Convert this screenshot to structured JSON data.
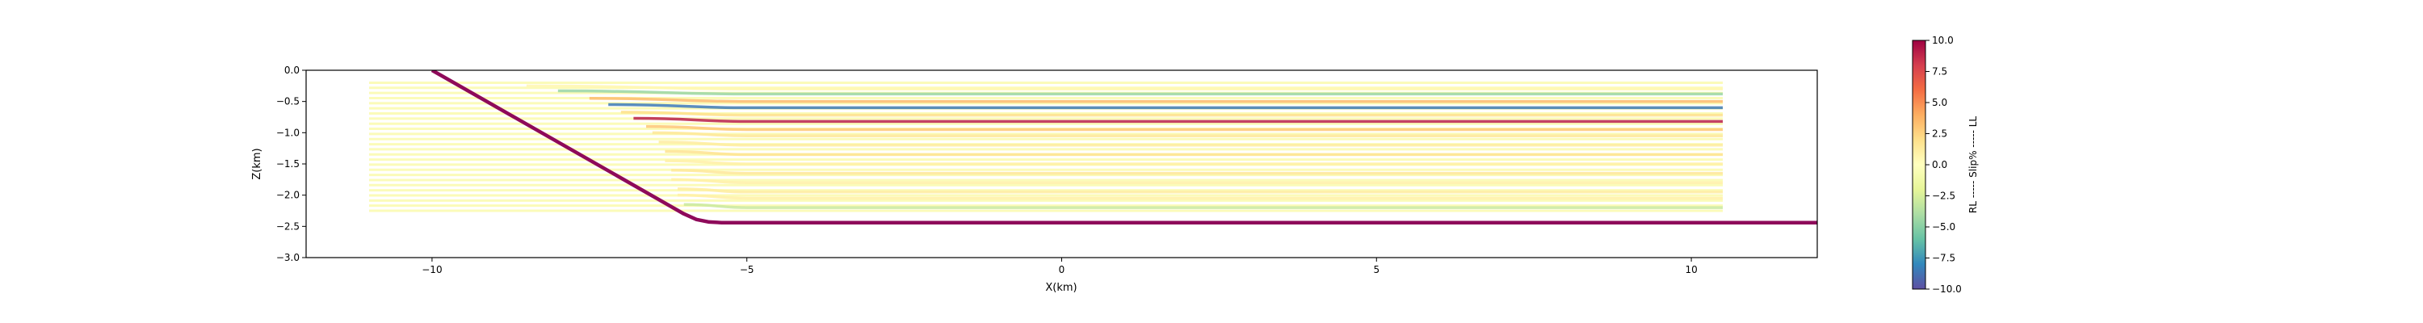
{
  "chart_data": {
    "type": "line",
    "xlabel": "X(km)",
    "ylabel": "Z(km)",
    "xlim": [
      -12,
      12
    ],
    "ylim": [
      -3.0,
      0.0
    ],
    "xticks": [
      -10,
      -5,
      0,
      5,
      10
    ],
    "xtick_labels": [
      "−10",
      "−5",
      "0",
      "5",
      "10"
    ],
    "yticks": [
      0.0,
      -0.5,
      -1.0,
      -1.5,
      -2.0,
      -2.5,
      -3.0
    ],
    "ytick_labels": [
      "0.0",
      "−0.5",
      "−1.0",
      "−1.5",
      "−2.0",
      "−2.5",
      "−3.0"
    ],
    "grid": false,
    "fault": {
      "color": "#8e0a5a",
      "x": [
        -10.0,
        -6.0,
        -5.8,
        -5.6,
        -5.4,
        12.0
      ],
      "z": [
        0.0,
        -2.3,
        -2.39,
        -2.43,
        -2.44,
        -2.44
      ]
    },
    "layers": {
      "x_start": -11.0,
      "x_end": 10.5,
      "z_top": -0.2,
      "z_bottom": -2.25,
      "count": 26,
      "base_color": "#fbfbb9",
      "strands": [
        {
          "z": -0.3,
          "slip": 0.5,
          "bend_start": -8.5,
          "bend_end": -5.0
        },
        {
          "z": -0.38,
          "slip": -4.5,
          "bend_start": -8.0,
          "bend_end": -5.0
        },
        {
          "z": -0.5,
          "slip": 3.5,
          "bend_start": -7.5,
          "bend_end": -5.0
        },
        {
          "z": -0.6,
          "slip": -8.5,
          "bend_start": -7.2,
          "bend_end": -5.0
        },
        {
          "z": -0.72,
          "slip": 2.0,
          "bend_start": -7.0,
          "bend_end": -5.0
        },
        {
          "z": -0.82,
          "slip": 9.0,
          "bend_start": -6.8,
          "bend_end": -5.0
        },
        {
          "z": -0.95,
          "slip": 3.0,
          "bend_start": -6.6,
          "bend_end": -5.0
        },
        {
          "z": -1.05,
          "slip": 1.5,
          "bend_start": -6.5,
          "bend_end": -5.0
        },
        {
          "z": -1.2,
          "slip": 1.2,
          "bend_start": -6.4,
          "bend_end": -5.0
        },
        {
          "z": -1.35,
          "slip": 1.8,
          "bend_start": -6.3,
          "bend_end": -5.0
        },
        {
          "z": -1.5,
          "slip": 1.0,
          "bend_start": -6.3,
          "bend_end": -5.0
        },
        {
          "z": -1.65,
          "slip": 1.5,
          "bend_start": -6.2,
          "bend_end": -5.0
        },
        {
          "z": -1.8,
          "slip": 1.0,
          "bend_start": -6.2,
          "bend_end": -5.0
        },
        {
          "z": -1.95,
          "slip": 1.2,
          "bend_start": -6.1,
          "bend_end": -5.0
        },
        {
          "z": -2.05,
          "slip": 1.0,
          "bend_start": -6.1,
          "bend_end": -5.0
        },
        {
          "z": -2.2,
          "slip": -3.0,
          "bend_start": -6.0,
          "bend_end": -5.0
        }
      ]
    },
    "colorbar": {
      "label": "RL ----- Slip% ----- LL",
      "vmin": -10.0,
      "vmax": 10.0,
      "ticks": [
        10.0,
        7.5,
        5.0,
        2.5,
        0.0,
        -2.5,
        -5.0,
        -7.5,
        -10.0
      ],
      "tick_labels": [
        "10.0",
        "7.5",
        "5.0",
        "2.5",
        "0.0",
        "−2.5",
        "−5.0",
        "−7.5",
        "−10.0"
      ],
      "colormap": [
        "#5e4fa2",
        "#3288bd",
        "#66c2a5",
        "#abdda4",
        "#e6f598",
        "#ffffbf",
        "#fee08b",
        "#fdae61",
        "#f46d43",
        "#d53e4f",
        "#9e0142"
      ]
    }
  }
}
